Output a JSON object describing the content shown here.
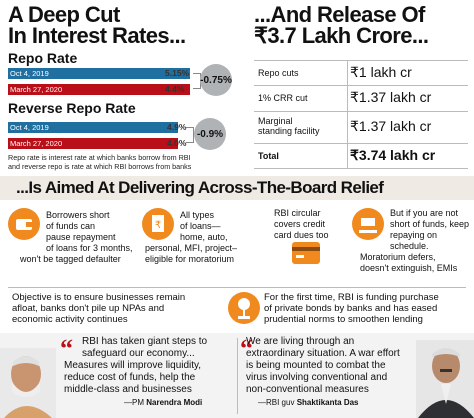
{
  "left_headline": [
    "A Deep Cut",
    "In Interest Rates..."
  ],
  "right_headline": [
    "...And Release Of",
    "₹3.7 Lakh Crore..."
  ],
  "repo": {
    "title": "Repo Rate",
    "rows": [
      {
        "date": "Oct 4, 2019",
        "value": "5.15%"
      },
      {
        "date": "March 27, 2020",
        "value": "4.4%"
      }
    ],
    "delta": "-0.75%"
  },
  "reverse_repo": {
    "title": "Reverse Repo Rate",
    "rows": [
      {
        "date": "Oct 4, 2019",
        "value": "4.9%"
      },
      {
        "date": "March 27, 2020",
        "value": "4.0%"
      }
    ],
    "delta": "-0.9%"
  },
  "rate_note": [
    "Repo rate is interest rate at which banks borrow from RBI",
    "and reverse repo is rate at which RBI borrows from banks"
  ],
  "release_table": {
    "rows": [
      {
        "label": [
          "Repo cuts"
        ],
        "value": "₹1 lakh cr"
      },
      {
        "label": [
          "1% CRR cut"
        ],
        "value": "₹1.37 lakh cr"
      },
      {
        "label": [
          "Marginal",
          "standing facility"
        ],
        "value": "₹1.37 lakh cr"
      },
      {
        "label": [
          "Total"
        ],
        "value": "₹3.74 lakh cr"
      }
    ]
  },
  "banner": "...Is Aimed At Delivering Across-The-Board Relief",
  "relief_items": [
    {
      "icon": "wallet-icon",
      "lines": [
        "Borrowers short",
        "of funds can",
        "pause repayment",
        "of loans for 3 months,",
        "won't be tagged defaulter"
      ]
    },
    {
      "icon": "rupee-document-icon",
      "lines": [
        "All types",
        "of loans—",
        "home, auto,",
        "personal, MFI, project–",
        "eligible for moratorium"
      ]
    },
    {
      "icon": "credit-card-icon",
      "lines": [
        "RBI circular",
        "covers credit",
        "card dues too"
      ]
    },
    {
      "icon": "money-hand-icon",
      "lines": [
        "But if you are not",
        "short of funds, keep",
        "repaying on",
        "schedule.",
        "Moratorium defers,",
        "doesn't extinguish, EMIs"
      ]
    }
  ],
  "objective_left": [
    "Objective is to ensure businesses remain",
    "afloat, banks don't pile up NPAs and",
    "economic activity continues"
  ],
  "objective_right": [
    "For the first time, RBI is funding purchase",
    "of private bonds by banks and has eased",
    "prudential norms to smoothen lending"
  ],
  "quotes": {
    "left": {
      "lines": [
        "RBI has taken giant steps to",
        "safeguard our economy...",
        "Measures will improve liquidity,",
        "reduce cost of funds, help the",
        "middle-class and businesses"
      ],
      "attribution_prefix": "—PM ",
      "attribution_name": "Narendra Modi"
    },
    "right": {
      "lines": [
        "We are living through an",
        "extraordinary situation. A war effort",
        "is being mounted to combat the",
        "virus involving conventional and",
        "non-conventional measures"
      ],
      "attribution_prefix": "—RBI guv ",
      "attribution_name": "Shaktikanta Das"
    }
  },
  "colors": {
    "accent_red": "#b80f18",
    "accent_blue": "#1f6fa0",
    "banner_bg": "#efeae4",
    "circle_grey": "#b0b3b5",
    "icon_orange": "#f08a1e"
  }
}
